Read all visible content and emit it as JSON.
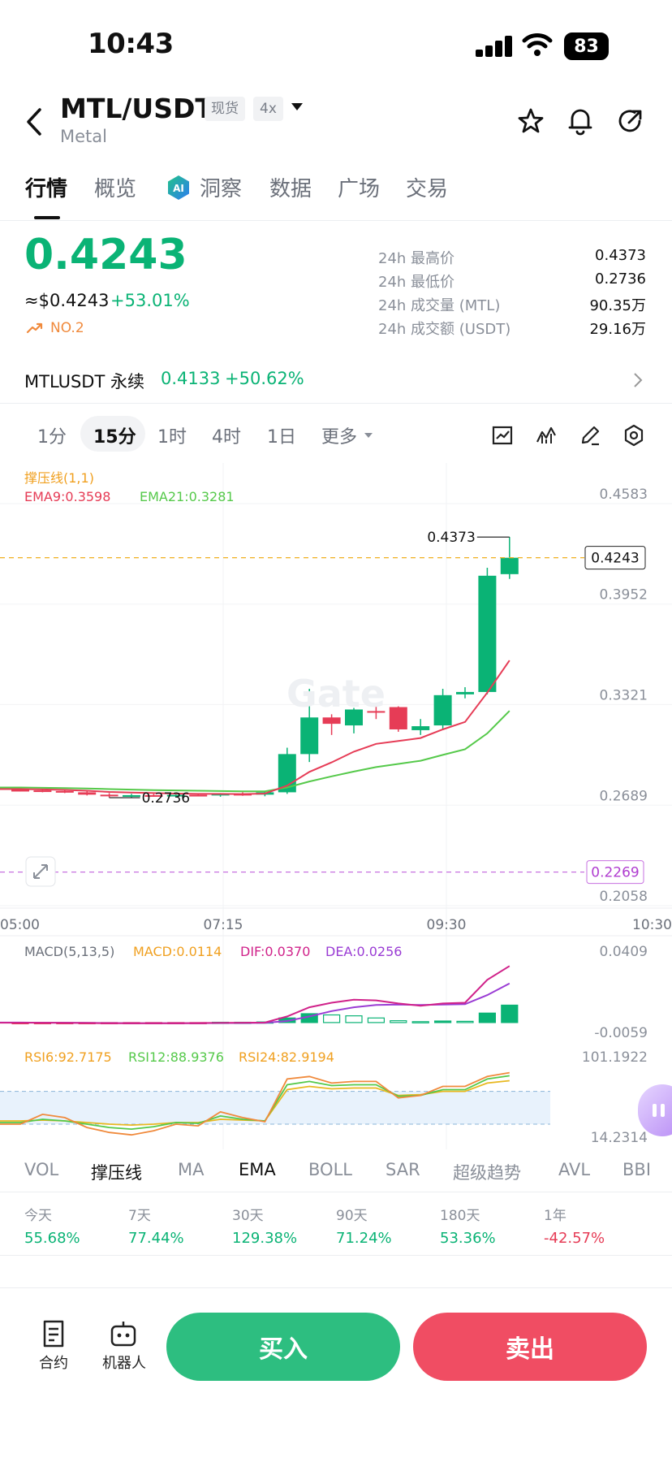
{
  "status_bar": {
    "time": "10:43",
    "battery": "83"
  },
  "header": {
    "pair": "MTL/USDT",
    "subtitle": "Metal",
    "spot_tag": "现货",
    "leverage_tag": "4x"
  },
  "tabs": [
    {
      "label": "行情",
      "active": true
    },
    {
      "label": "概览"
    },
    {
      "label": "洞察"
    },
    {
      "label": "数据"
    },
    {
      "label": "广场"
    },
    {
      "label": "交易"
    }
  ],
  "ticker": {
    "price": "0.4243",
    "usd": "≈$0.4243",
    "change": "+53.01%",
    "rank": "NO.2",
    "stats": [
      {
        "label": "24h 最高价",
        "value": "0.4373"
      },
      {
        "label": "24h 最低价",
        "value": "0.2736"
      },
      {
        "label": "24h 成交量 (MTL)",
        "value": "90.35万"
      },
      {
        "label": "24h 成交额 (USDT)",
        "value": "29.16万"
      }
    ]
  },
  "perpetual": {
    "name": "MTLUSDT 永续",
    "price": "0.4133",
    "change": "+50.62%"
  },
  "timeframes": {
    "items": [
      "1分",
      "15分",
      "1时",
      "4时",
      "1日"
    ],
    "active": "15分",
    "more": "更多"
  },
  "chart_data": [
    {
      "type": "candlestick",
      "legend_top": "撑压线(1,1)",
      "ema9_label": "EMA9:0.3598",
      "ema21_label": "EMA21:0.3281",
      "y_ticks": [
        "0.4583",
        "0.3952",
        "0.3321",
        "0.2689",
        "0.2058"
      ],
      "ylim": [
        0.2058,
        0.4583
      ],
      "x_ticks": [
        "05:00",
        "07:15",
        "09:30",
        "10:30"
      ],
      "current_price": "0.4243",
      "support_line": "0.2269",
      "high_marker": "0.4373",
      "low_marker": "0.2736",
      "candles": [
        {
          "o": 0.2785,
          "h": 0.2792,
          "l": 0.2775,
          "c": 0.2782
        },
        {
          "o": 0.2782,
          "h": 0.2788,
          "l": 0.277,
          "c": 0.2778
        },
        {
          "o": 0.2778,
          "h": 0.2785,
          "l": 0.2765,
          "c": 0.277
        },
        {
          "o": 0.277,
          "h": 0.2775,
          "l": 0.275,
          "c": 0.2755
        },
        {
          "o": 0.2755,
          "h": 0.2765,
          "l": 0.2736,
          "c": 0.2745
        },
        {
          "o": 0.2745,
          "h": 0.276,
          "l": 0.2738,
          "c": 0.2752
        },
        {
          "o": 0.2752,
          "h": 0.276,
          "l": 0.2742,
          "c": 0.2748
        },
        {
          "o": 0.2748,
          "h": 0.2758,
          "l": 0.274,
          "c": 0.2754
        },
        {
          "o": 0.2754,
          "h": 0.2762,
          "l": 0.2745,
          "c": 0.275
        },
        {
          "o": 0.275,
          "h": 0.2765,
          "l": 0.2742,
          "c": 0.276
        },
        {
          "o": 0.276,
          "h": 0.277,
          "l": 0.2748,
          "c": 0.2755
        },
        {
          "o": 0.2755,
          "h": 0.278,
          "l": 0.2745,
          "c": 0.277
        },
        {
          "o": 0.277,
          "h": 0.305,
          "l": 0.276,
          "c": 0.301
        },
        {
          "o": 0.301,
          "h": 0.342,
          "l": 0.296,
          "c": 0.324
        },
        {
          "o": 0.324,
          "h": 0.326,
          "l": 0.313,
          "c": 0.32
        },
        {
          "o": 0.319,
          "h": 0.33,
          "l": 0.314,
          "c": 0.329
        },
        {
          "o": 0.328,
          "h": 0.331,
          "l": 0.323,
          "c": 0.327
        },
        {
          "o": 0.3305,
          "h": 0.331,
          "l": 0.315,
          "c": 0.3165
        },
        {
          "o": 0.316,
          "h": 0.323,
          "l": 0.313,
          "c": 0.3185
        },
        {
          "o": 0.319,
          "h": 0.342,
          "l": 0.317,
          "c": 0.338
        },
        {
          "o": 0.3385,
          "h": 0.343,
          "l": 0.336,
          "c": 0.34
        },
        {
          "o": 0.34,
          "h": 0.418,
          "l": 0.3385,
          "c": 0.413
        },
        {
          "o": 0.414,
          "h": 0.4373,
          "l": 0.411,
          "c": 0.4243
        }
      ],
      "ema9": [
        0.279,
        0.2788,
        0.2785,
        0.278,
        0.2772,
        0.2768,
        0.2765,
        0.2762,
        0.276,
        0.276,
        0.2759,
        0.2762,
        0.2812,
        0.2898,
        0.2958,
        0.3025,
        0.3074,
        0.3092,
        0.3111,
        0.3165,
        0.3212,
        0.3396,
        0.3598
      ],
      "ema21": [
        0.28,
        0.2798,
        0.2796,
        0.2794,
        0.279,
        0.2787,
        0.2784,
        0.2782,
        0.278,
        0.2778,
        0.2776,
        0.2776,
        0.28,
        0.2838,
        0.287,
        0.29,
        0.2928,
        0.2948,
        0.2968,
        0.3005,
        0.304,
        0.314,
        0.3281
      ]
    },
    {
      "type": "macd",
      "title": "MACD(5,13,5)",
      "macd_label": "MACD:0.0114",
      "dif_label": "DIF:0.0370",
      "dea_label": "DEA:0.0256",
      "y_ticks": [
        "0.0409",
        "-0.0059"
      ],
      "ylim": [
        -0.0059,
        0.0409
      ],
      "histogram": [
        -0.0003,
        -0.0004,
        -0.0004,
        -0.0005,
        -0.0008,
        -0.0006,
        -0.0004,
        -0.0002,
        -0.0001,
        0.0002,
        0.0002,
        0.0004,
        0.003,
        0.0058,
        0.005,
        0.0044,
        0.003,
        0.0012,
        0.0006,
        0.001,
        0.0008,
        0.0062,
        0.0114
      ],
      "dif": [
        -0.0001,
        -0.0001,
        -0.0002,
        -0.0003,
        -0.0005,
        -0.0005,
        -0.0005,
        -0.0004,
        -0.0003,
        -0.0002,
        -0.0001,
        0.0,
        0.004,
        0.01,
        0.013,
        0.015,
        0.0145,
        0.0125,
        0.011,
        0.0125,
        0.013,
        0.028,
        0.037
      ],
      "dea": [
        0.0,
        -0.0001,
        -0.0001,
        -0.0002,
        -0.0003,
        -0.0004,
        -0.0004,
        -0.0004,
        -0.0004,
        -0.0003,
        -0.0003,
        -0.0002,
        0.001,
        0.004,
        0.0075,
        0.01,
        0.0115,
        0.0118,
        0.0115,
        0.0118,
        0.012,
        0.018,
        0.0256
      ]
    },
    {
      "type": "rsi",
      "rsi6_label": "RSI6:92.7175",
      "rsi12_label": "RSI12:88.9376",
      "rsi24_label": "RSI24:82.9194",
      "y_ticks": [
        "101.1922",
        "14.2314"
      ],
      "ylim": [
        14.2314,
        101.1922
      ],
      "rsi6": [
        30,
        42,
        38,
        26,
        20,
        17,
        22,
        30,
        28,
        45,
        38,
        33,
        85,
        88,
        80,
        82,
        82,
        62,
        65,
        76,
        76,
        88,
        92.7
      ],
      "rsi12": [
        32,
        36,
        34,
        30,
        26,
        24,
        27,
        32,
        31,
        40,
        36,
        34,
        78,
        82,
        77,
        78,
        78,
        64,
        65,
        72,
        72,
        85,
        88.9
      ],
      "rsi24": [
        34,
        35,
        34,
        32,
        30,
        29,
        30,
        32,
        32,
        36,
        35,
        34,
        72,
        76,
        73,
        74,
        74,
        65,
        66,
        70,
        70,
        80,
        82.9
      ]
    }
  ],
  "indicator_tabs": {
    "items": [
      "VOL",
      "撑压线",
      "MA",
      "EMA",
      "BOLL",
      "SAR",
      "超级趋势",
      "AVL",
      "BBI"
    ],
    "active": [
      "撑压线",
      "EMA"
    ]
  },
  "performance": [
    {
      "label": "今天",
      "value": "55.68%",
      "dir": "up"
    },
    {
      "label": "7天",
      "value": "77.44%",
      "dir": "up"
    },
    {
      "label": "30天",
      "value": "129.38%",
      "dir": "up"
    },
    {
      "label": "90天",
      "value": "71.24%",
      "dir": "up"
    },
    {
      "label": "180天",
      "value": "53.36%",
      "dir": "up"
    },
    {
      "label": "1年",
      "value": "-42.57%",
      "dir": "down"
    }
  ],
  "bottom_bar": {
    "contract": "合约",
    "robot": "机器人",
    "buy": "买入",
    "sell": "卖出"
  },
  "colors": {
    "up": "#0ab375",
    "down": "#e63c56",
    "buy_btn": "#2dbe80",
    "sell_btn": "#f04d63"
  }
}
